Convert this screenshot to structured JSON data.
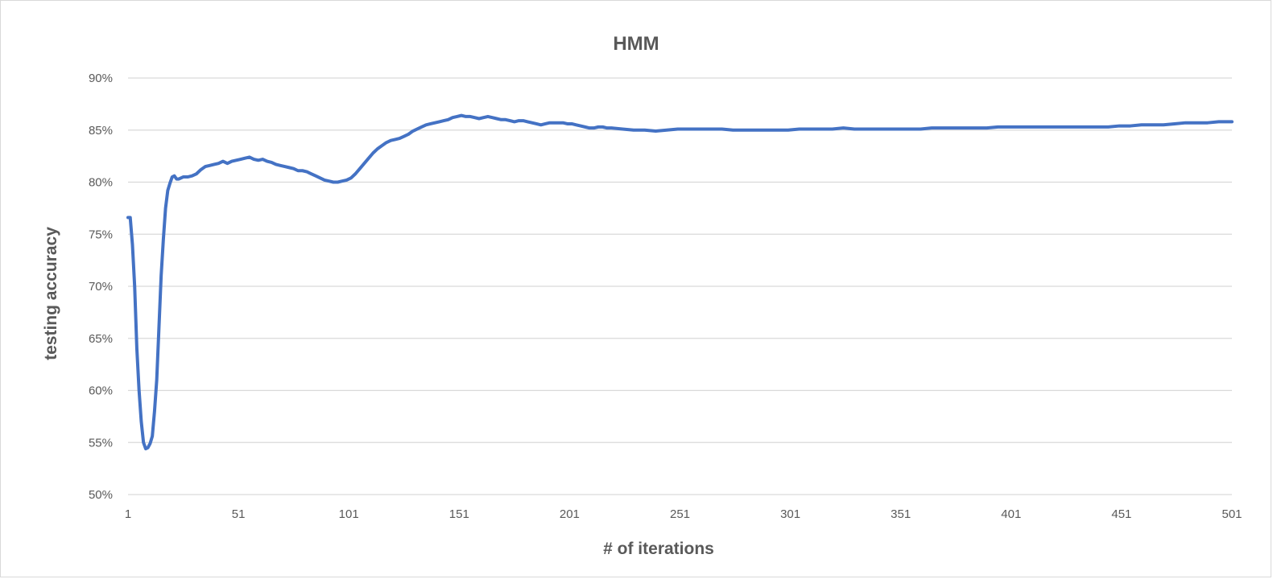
{
  "chart_data": {
    "type": "line",
    "title": "HMM",
    "xlabel": "# of iterations",
    "ylabel": "testing accuracy",
    "x_ticks": [
      "1",
      "51",
      "101",
      "151",
      "201",
      "251",
      "301",
      "351",
      "401",
      "451",
      "501"
    ],
    "y_ticks": [
      "50%",
      "55%",
      "60%",
      "65%",
      "70%",
      "75%",
      "80%",
      "85%",
      "90%"
    ],
    "xlim": [
      1,
      501
    ],
    "ylim": [
      0.5,
      0.9
    ],
    "grid": "horizontal",
    "legend": "none",
    "series": [
      {
        "color": "#4472c4",
        "points": [
          [
            1,
            0.766
          ],
          [
            2,
            0.766
          ],
          [
            3,
            0.74
          ],
          [
            4,
            0.7
          ],
          [
            5,
            0.64
          ],
          [
            6,
            0.6
          ],
          [
            7,
            0.57
          ],
          [
            8,
            0.55
          ],
          [
            9,
            0.544
          ],
          [
            10,
            0.545
          ],
          [
            11,
            0.549
          ],
          [
            12,
            0.556
          ],
          [
            13,
            0.58
          ],
          [
            14,
            0.61
          ],
          [
            15,
            0.66
          ],
          [
            16,
            0.71
          ],
          [
            17,
            0.745
          ],
          [
            18,
            0.775
          ],
          [
            19,
            0.792
          ],
          [
            20,
            0.799
          ],
          [
            21,
            0.805
          ],
          [
            22,
            0.806
          ],
          [
            23,
            0.803
          ],
          [
            24,
            0.803
          ],
          [
            26,
            0.805
          ],
          [
            28,
            0.805
          ],
          [
            30,
            0.806
          ],
          [
            32,
            0.808
          ],
          [
            34,
            0.812
          ],
          [
            36,
            0.815
          ],
          [
            38,
            0.816
          ],
          [
            40,
            0.817
          ],
          [
            42,
            0.818
          ],
          [
            44,
            0.82
          ],
          [
            46,
            0.818
          ],
          [
            48,
            0.82
          ],
          [
            50,
            0.821
          ],
          [
            52,
            0.822
          ],
          [
            54,
            0.823
          ],
          [
            56,
            0.824
          ],
          [
            58,
            0.822
          ],
          [
            60,
            0.821
          ],
          [
            62,
            0.822
          ],
          [
            64,
            0.82
          ],
          [
            66,
            0.819
          ],
          [
            68,
            0.817
          ],
          [
            70,
            0.816
          ],
          [
            72,
            0.815
          ],
          [
            74,
            0.814
          ],
          [
            76,
            0.813
          ],
          [
            78,
            0.811
          ],
          [
            80,
            0.811
          ],
          [
            82,
            0.81
          ],
          [
            84,
            0.808
          ],
          [
            86,
            0.806
          ],
          [
            88,
            0.804
          ],
          [
            90,
            0.802
          ],
          [
            92,
            0.801
          ],
          [
            94,
            0.8
          ],
          [
            96,
            0.8
          ],
          [
            98,
            0.801
          ],
          [
            100,
            0.802
          ],
          [
            102,
            0.804
          ],
          [
            104,
            0.808
          ],
          [
            106,
            0.813
          ],
          [
            108,
            0.818
          ],
          [
            110,
            0.823
          ],
          [
            112,
            0.828
          ],
          [
            114,
            0.832
          ],
          [
            116,
            0.835
          ],
          [
            118,
            0.838
          ],
          [
            120,
            0.84
          ],
          [
            122,
            0.841
          ],
          [
            124,
            0.842
          ],
          [
            126,
            0.844
          ],
          [
            128,
            0.846
          ],
          [
            130,
            0.849
          ],
          [
            132,
            0.851
          ],
          [
            134,
            0.853
          ],
          [
            136,
            0.855
          ],
          [
            138,
            0.856
          ],
          [
            140,
            0.857
          ],
          [
            142,
            0.858
          ],
          [
            144,
            0.859
          ],
          [
            146,
            0.86
          ],
          [
            148,
            0.862
          ],
          [
            150,
            0.863
          ],
          [
            152,
            0.864
          ],
          [
            154,
            0.863
          ],
          [
            156,
            0.863
          ],
          [
            158,
            0.862
          ],
          [
            160,
            0.861
          ],
          [
            162,
            0.862
          ],
          [
            164,
            0.863
          ],
          [
            166,
            0.862
          ],
          [
            168,
            0.861
          ],
          [
            170,
            0.86
          ],
          [
            172,
            0.86
          ],
          [
            174,
            0.859
          ],
          [
            176,
            0.858
          ],
          [
            178,
            0.859
          ],
          [
            180,
            0.859
          ],
          [
            182,
            0.858
          ],
          [
            184,
            0.857
          ],
          [
            186,
            0.856
          ],
          [
            188,
            0.855
          ],
          [
            190,
            0.856
          ],
          [
            192,
            0.857
          ],
          [
            194,
            0.857
          ],
          [
            196,
            0.857
          ],
          [
            198,
            0.857
          ],
          [
            200,
            0.856
          ],
          [
            202,
            0.856
          ],
          [
            204,
            0.855
          ],
          [
            206,
            0.854
          ],
          [
            208,
            0.853
          ],
          [
            210,
            0.852
          ],
          [
            212,
            0.852
          ],
          [
            214,
            0.853
          ],
          [
            216,
            0.853
          ],
          [
            218,
            0.852
          ],
          [
            220,
            0.852
          ],
          [
            225,
            0.851
          ],
          [
            230,
            0.85
          ],
          [
            235,
            0.85
          ],
          [
            240,
            0.849
          ],
          [
            245,
            0.85
          ],
          [
            250,
            0.851
          ],
          [
            255,
            0.851
          ],
          [
            260,
            0.851
          ],
          [
            265,
            0.851
          ],
          [
            270,
            0.851
          ],
          [
            275,
            0.85
          ],
          [
            280,
            0.85
          ],
          [
            285,
            0.85
          ],
          [
            290,
            0.85
          ],
          [
            295,
            0.85
          ],
          [
            300,
            0.85
          ],
          [
            305,
            0.851
          ],
          [
            310,
            0.851
          ],
          [
            315,
            0.851
          ],
          [
            320,
            0.851
          ],
          [
            325,
            0.852
          ],
          [
            330,
            0.851
          ],
          [
            335,
            0.851
          ],
          [
            340,
            0.851
          ],
          [
            345,
            0.851
          ],
          [
            350,
            0.851
          ],
          [
            355,
            0.851
          ],
          [
            360,
            0.851
          ],
          [
            365,
            0.852
          ],
          [
            370,
            0.852
          ],
          [
            375,
            0.852
          ],
          [
            380,
            0.852
          ],
          [
            385,
            0.852
          ],
          [
            390,
            0.852
          ],
          [
            395,
            0.853
          ],
          [
            400,
            0.853
          ],
          [
            405,
            0.853
          ],
          [
            410,
            0.853
          ],
          [
            415,
            0.853
          ],
          [
            420,
            0.853
          ],
          [
            425,
            0.853
          ],
          [
            430,
            0.853
          ],
          [
            435,
            0.853
          ],
          [
            440,
            0.853
          ],
          [
            445,
            0.853
          ],
          [
            450,
            0.854
          ],
          [
            455,
            0.854
          ],
          [
            460,
            0.855
          ],
          [
            465,
            0.855
          ],
          [
            470,
            0.855
          ],
          [
            475,
            0.856
          ],
          [
            480,
            0.857
          ],
          [
            485,
            0.857
          ],
          [
            490,
            0.857
          ],
          [
            495,
            0.858
          ],
          [
            501,
            0.858
          ]
        ]
      }
    ]
  }
}
